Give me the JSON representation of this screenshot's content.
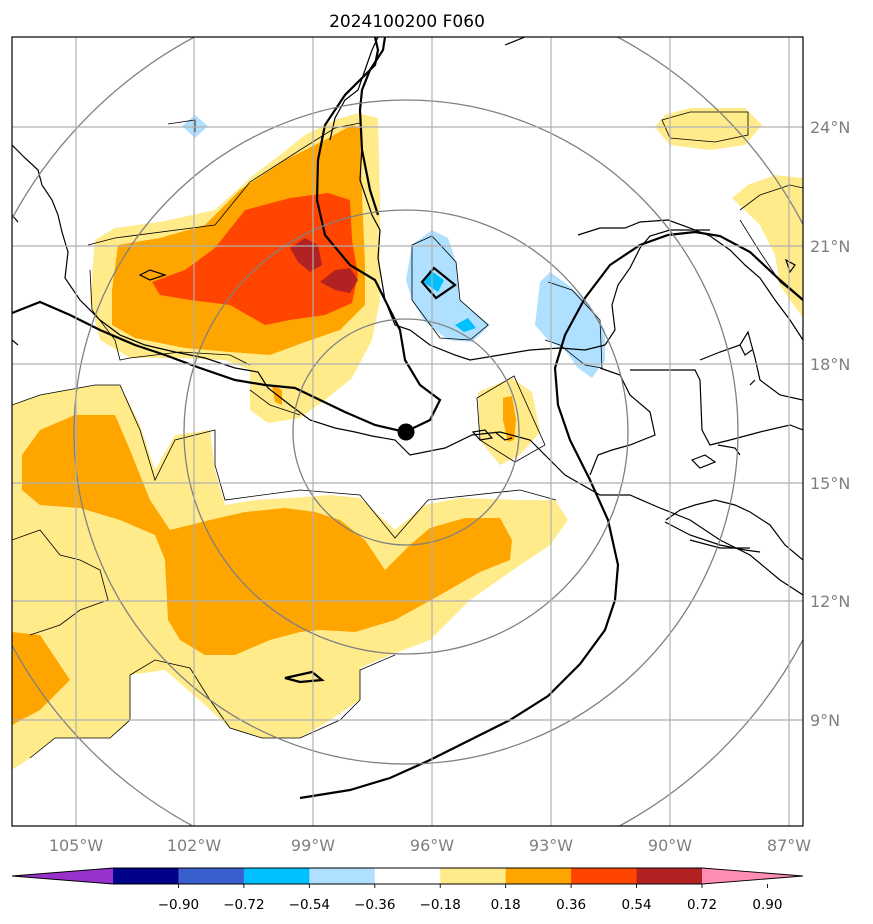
{
  "title": "2024100200 F060",
  "map": {
    "longitude_labels": [
      "105°W",
      "102°W",
      "99°W",
      "96°W",
      "93°W",
      "90°W",
      "87°W"
    ],
    "latitude_labels": [
      "24°N",
      "21°N",
      "18°N",
      "15°N",
      "12°N",
      "9°N"
    ],
    "storm_center": {
      "lon": -96.6,
      "lat": 16.2
    }
  },
  "colorbar": {
    "tick_labels": [
      "−0.90",
      "−0.72",
      "−0.54",
      "−0.36",
      "−0.18",
      "0.18",
      "0.36",
      "0.54",
      "0.72",
      "0.90"
    ],
    "colors": [
      "#9932cc",
      "#00008b",
      "#3a5fcd",
      "#00bfff",
      "#b0e0ff",
      "#ffffff",
      "#ffeb8a",
      "#ffa500",
      "#ff4500",
      "#b22222",
      "#ff8cb4"
    ]
  }
}
